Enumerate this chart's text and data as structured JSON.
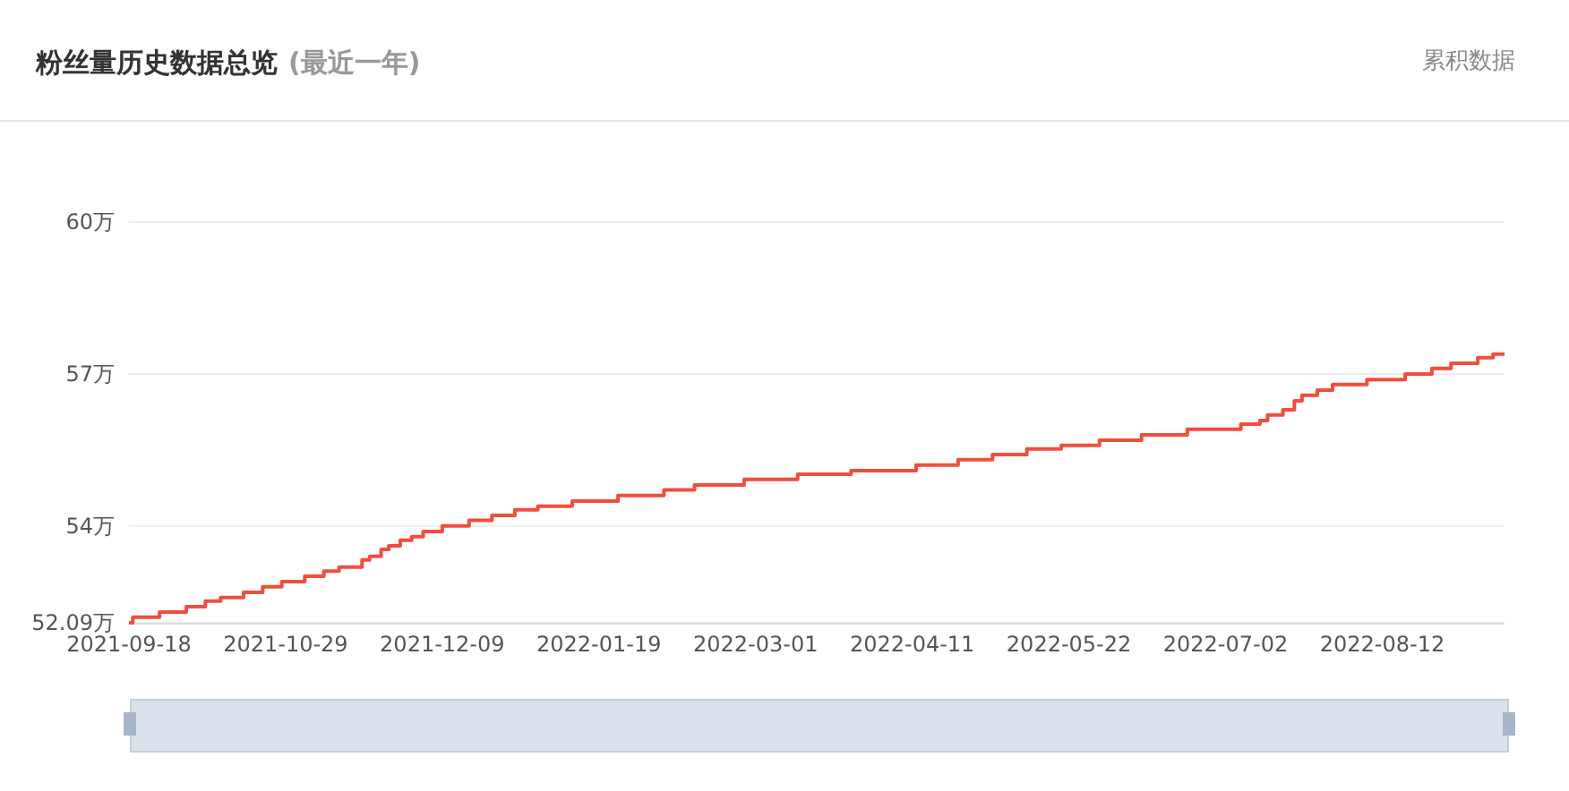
{
  "chart_data": {
    "type": "step",
    "title": "粉丝量历史数据总览",
    "subtitle": "(最近一年)",
    "annotations": [
      "累积数据"
    ],
    "x": [
      "2021-09-18",
      "2021-09-19",
      "2021-09-26",
      "2021-10-03",
      "2021-10-08",
      "2021-10-12",
      "2021-10-18",
      "2021-10-23",
      "2021-10-28",
      "2021-11-03",
      "2021-11-08",
      "2021-11-12",
      "2021-11-18",
      "2021-11-20",
      "2021-11-23",
      "2021-11-25",
      "2021-11-28",
      "2021-12-01",
      "2021-12-04",
      "2021-12-09",
      "2021-12-16",
      "2021-12-22",
      "2021-12-28",
      "2022-01-03",
      "2022-01-12",
      "2022-01-24",
      "2022-02-05",
      "2022-02-13",
      "2022-02-26",
      "2022-03-12",
      "2022-03-26",
      "2022-04-12",
      "2022-04-23",
      "2022-05-02",
      "2022-05-11",
      "2022-05-20",
      "2022-05-30",
      "2022-06-10",
      "2022-06-22",
      "2022-07-06",
      "2022-07-11",
      "2022-07-13",
      "2022-07-17",
      "2022-07-20",
      "2022-07-22",
      "2022-07-26",
      "2022-07-30",
      "2022-08-08",
      "2022-08-18",
      "2022-08-25",
      "2022-08-30",
      "2022-09-06",
      "2022-09-10",
      "2022-09-13"
    ],
    "series": [
      {
        "color": "#f04e3e",
        "values": [
          52.09,
          52.2,
          52.3,
          52.41,
          52.52,
          52.59,
          52.69,
          52.8,
          52.9,
          53.01,
          53.11,
          53.19,
          53.33,
          53.4,
          53.54,
          53.61,
          53.72,
          53.79,
          53.89,
          54.0,
          54.11,
          54.21,
          54.32,
          54.39,
          54.49,
          54.6,
          54.71,
          54.81,
          54.92,
          55.02,
          55.09,
          55.2,
          55.31,
          55.41,
          55.52,
          55.59,
          55.69,
          55.8,
          55.91,
          56.01,
          56.08,
          56.19,
          56.29,
          56.47,
          56.58,
          56.68,
          56.79,
          56.89,
          57.0,
          57.11,
          57.21,
          57.32,
          57.39,
          57.39
        ]
      }
    ],
    "xlim": [
      "2021-09-18",
      "2022-09-13"
    ],
    "xticks": [
      "2021-09-18",
      "2021-10-29",
      "2021-12-09",
      "2022-01-19",
      "2022-03-01",
      "2022-04-11",
      "2022-05-22",
      "2022-07-02",
      "2022-08-12"
    ],
    "ylim": [
      52.09,
      60
    ],
    "yticks": [
      {
        "value": 52.09,
        "label": "52.09万"
      },
      {
        "value": 54,
        "label": "54万"
      },
      {
        "value": 57,
        "label": "57万"
      },
      {
        "value": 60,
        "label": "60万"
      }
    ],
    "grid": "y",
    "marker": "none"
  }
}
